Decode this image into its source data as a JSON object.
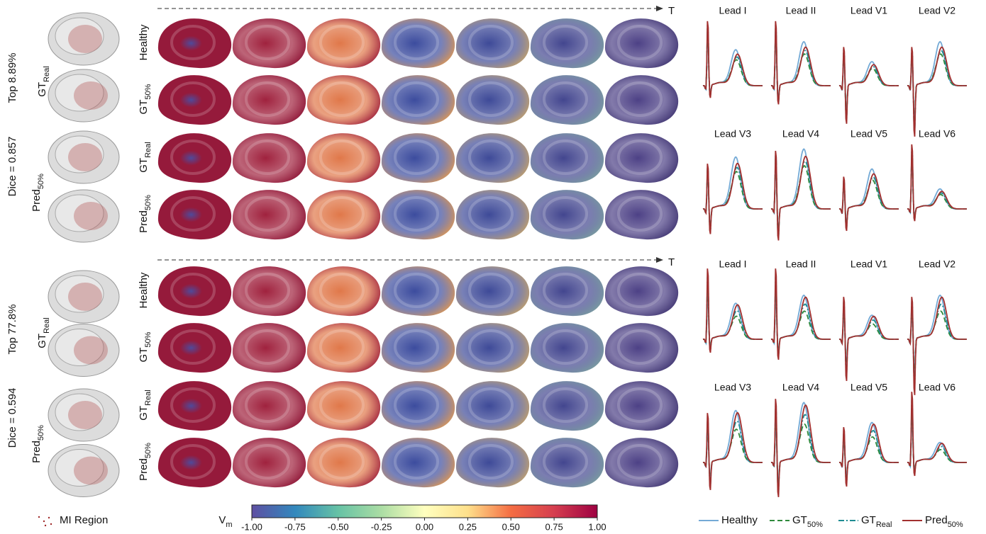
{
  "arrow_label": "T",
  "cases": [
    {
      "top": "Top 8.89%",
      "dice": "Dice = 0.857",
      "mesh_labels": [
        {
          "base": "GT",
          "sub": "Real"
        },
        {
          "base": "Pred",
          "sub": "50%"
        }
      ],
      "row_labels": [
        {
          "base": "Healthy"
        },
        {
          "base": "GT",
          "sub": "50%"
        },
        {
          "base": "GT",
          "sub": "Real"
        },
        {
          "base": "Pred",
          "sub": "50%"
        }
      ]
    },
    {
      "top": "Top 77.8%",
      "dice": "Dice = 0.594",
      "mesh_labels": [
        {
          "base": "GT",
          "sub": "Real"
        },
        {
          "base": "Pred",
          "sub": "50%"
        }
      ],
      "row_labels": [
        {
          "base": "Healthy"
        },
        {
          "base": "GT",
          "sub": "50%"
        },
        {
          "base": "GT",
          "sub": "Real"
        },
        {
          "base": "Pred",
          "sub": "50%"
        }
      ]
    }
  ],
  "leads": [
    "Lead I",
    "Lead II",
    "Lead V1",
    "Lead V2",
    "Lead V3",
    "Lead V4",
    "Lead V5",
    "Lead V6"
  ],
  "colorbar": {
    "label": {
      "base": "V",
      "sub": "m"
    },
    "lim": [
      -1,
      1
    ],
    "ticks": [
      {
        "value": -1,
        "label": "-1.00"
      },
      {
        "value": -0.75,
        "label": "-0.75"
      },
      {
        "value": -0.5,
        "label": "-0.50"
      },
      {
        "value": -0.25,
        "label": "-0.25"
      },
      {
        "value": 0,
        "label": "0.00"
      },
      {
        "value": 0.25,
        "label": "0.25"
      },
      {
        "value": 0.5,
        "label": "0.50"
      },
      {
        "value": 0.75,
        "label": "0.75"
      },
      {
        "value": 1,
        "label": "1.00"
      }
    ]
  },
  "legend": {
    "mi_region": "MI Region",
    "series": [
      {
        "name": {
          "base": "Healthy"
        },
        "color": "#74aad6",
        "dash": "none"
      },
      {
        "name": {
          "base": "GT",
          "sub": "50%"
        },
        "color": "#2f8a3c",
        "dash": "7 4"
      },
      {
        "name": {
          "base": "GT",
          "sub": "Real"
        },
        "color": "#1e8c92",
        "dash": "8 3 2 3"
      },
      {
        "name": {
          "base": "Pred",
          "sub": "50%"
        },
        "color": "#a2302f",
        "dash": "none"
      }
    ]
  }
}
